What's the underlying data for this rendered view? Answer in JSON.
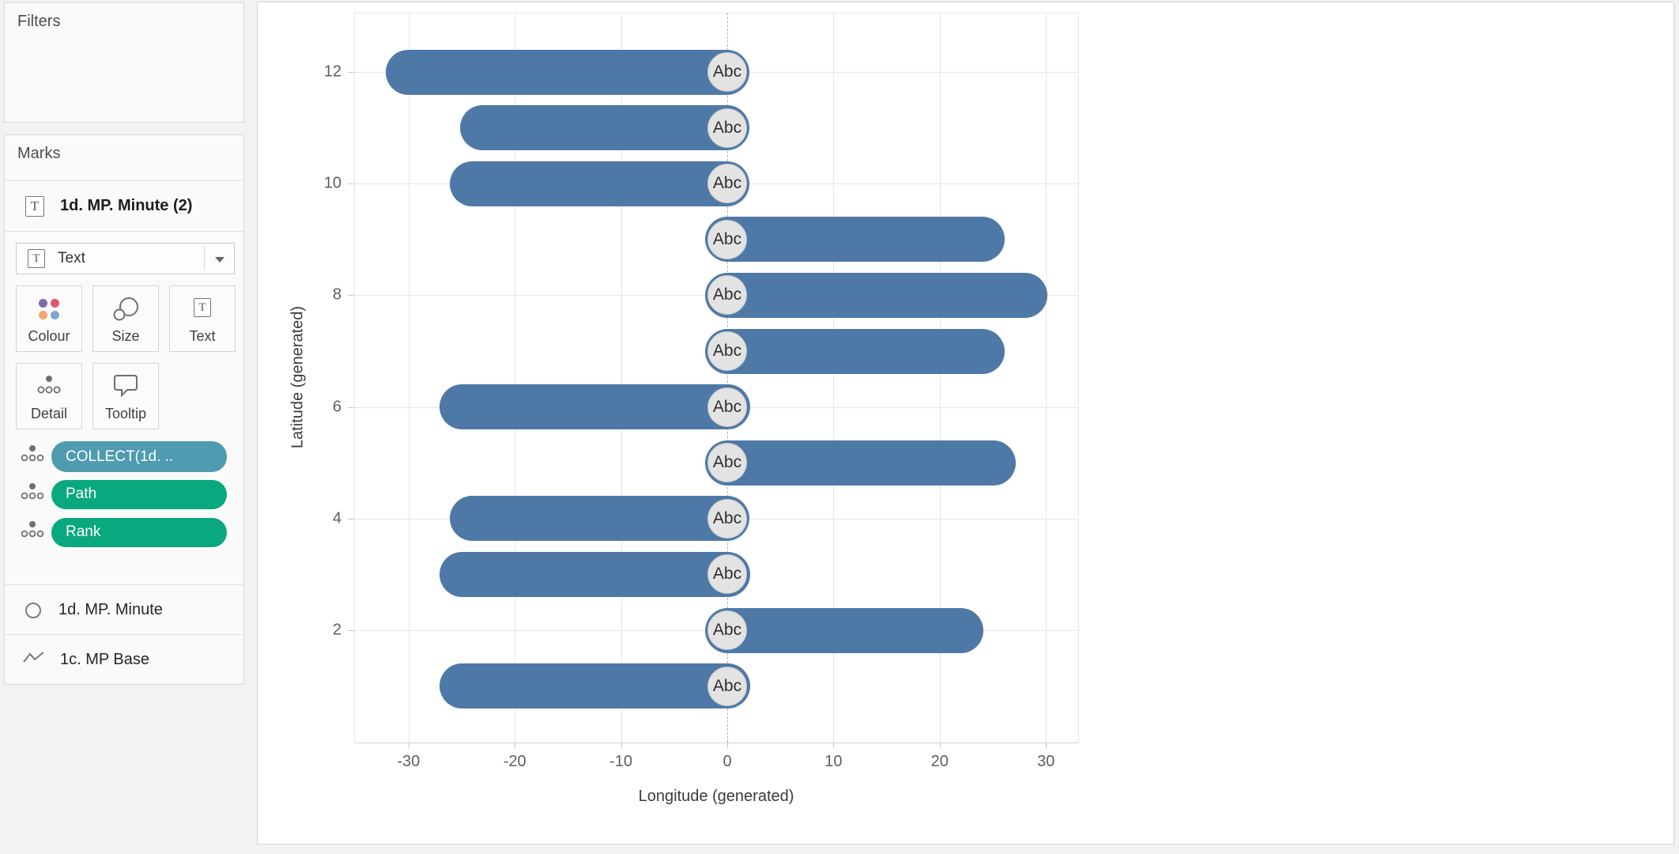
{
  "filters_card": {
    "title": "Filters"
  },
  "marks_card": {
    "title": "Marks",
    "selected_mark_header": {
      "label": "1d. MP. Minute (2)",
      "icon": "text-mark-icon"
    },
    "mark_type_dropdown": {
      "label": "Text",
      "icon": "text-mark-icon"
    },
    "property_buttons": [
      {
        "label": "Colour",
        "icon": "colour-icon"
      },
      {
        "label": "Size",
        "icon": "size-icon"
      },
      {
        "label": "Text",
        "icon": "text-icon"
      },
      {
        "label": "Detail",
        "icon": "detail-icon"
      },
      {
        "label": "Tooltip",
        "icon": "tooltip-icon"
      }
    ],
    "colour_icon_dot_colors": [
      "#7c6bab",
      "#e3566d",
      "#f2a56e",
      "#7fa6d0"
    ],
    "pills": [
      {
        "label": "COLLECT(1d. ..",
        "color": "#4f9bb0",
        "icon": "detail-dots-icon"
      },
      {
        "label": "Path",
        "color": "#0aa87e",
        "icon": "detail-dots-icon"
      },
      {
        "label": "Rank",
        "color": "#0aa87e",
        "icon": "detail-dots-icon"
      }
    ],
    "other_mark_cards": [
      {
        "label": "1d. MP. Minute",
        "icon": "circle-mark-icon"
      },
      {
        "label": "1c. MP Base",
        "icon": "line-mark-icon"
      }
    ]
  },
  "chart_data": {
    "type": "bar",
    "orientation": "horizontal",
    "title": "",
    "xlabel": "Longitude (generated)",
    "ylabel": "Latitude (generated)",
    "xlim": [
      -35,
      33
    ],
    "ylim": [
      0.3,
      12.7
    ],
    "x_ticks": [
      -30,
      -20,
      -10,
      0,
      10,
      20,
      30
    ],
    "y_ticks": [
      2,
      4,
      6,
      8,
      10,
      12
    ],
    "grid": true,
    "legend": "none",
    "zero_line": "dashed",
    "bar_color": "#4e79a7",
    "label_bubble_fill": "#e3e3e3",
    "mark_label": "Abc",
    "bars": [
      {
        "category": 12,
        "value": -30,
        "label": "Abc"
      },
      {
        "category": 11,
        "value": -23,
        "label": "Abc"
      },
      {
        "category": 10,
        "value": -24,
        "label": "Abc"
      },
      {
        "category": 9,
        "value": 24,
        "label": "Abc"
      },
      {
        "category": 8,
        "value": 28,
        "label": "Abc"
      },
      {
        "category": 7,
        "value": 24,
        "label": "Abc"
      },
      {
        "category": 6,
        "value": -25,
        "label": "Abc"
      },
      {
        "category": 5,
        "value": 25,
        "label": "Abc"
      },
      {
        "category": 4,
        "value": -24,
        "label": "Abc"
      },
      {
        "category": 3,
        "value": -25,
        "label": "Abc"
      },
      {
        "category": 2,
        "value": 22,
        "label": "Abc"
      },
      {
        "category": 1,
        "value": -25,
        "label": "Abc"
      }
    ]
  }
}
